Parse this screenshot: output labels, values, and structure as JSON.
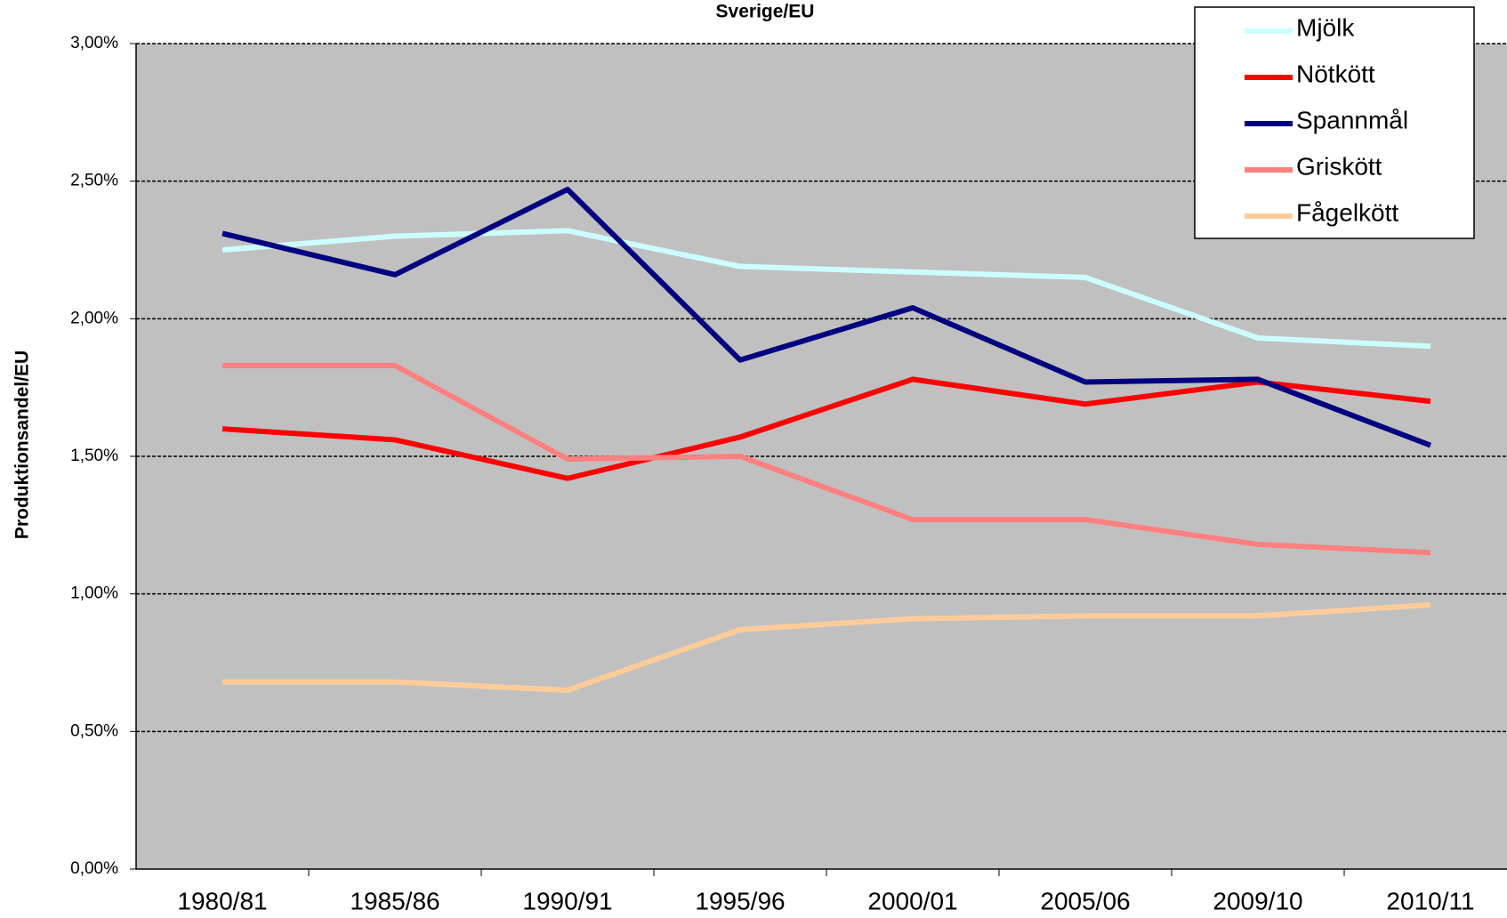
{
  "chart_data": {
    "type": "line",
    "title": "Sverige/EU",
    "y_label": "Produktionsandel/EU",
    "categories": [
      "1980/81",
      "1985/86",
      "1990/91",
      "1995/96",
      "2000/01",
      "2005/06",
      "2009/10",
      "2010/11"
    ],
    "series": [
      {
        "name": "Mjölk",
        "color": "#ccffff",
        "values": [
          2.25,
          2.3,
          2.32,
          2.19,
          2.17,
          2.15,
          1.93,
          1.9
        ]
      },
      {
        "name": "Nötkött",
        "color": "#ff0000",
        "values": [
          1.6,
          1.56,
          1.42,
          1.57,
          1.78,
          1.69,
          1.77,
          1.7
        ]
      },
      {
        "name": "Spannmål",
        "color": "#000080",
        "values": [
          2.31,
          2.16,
          2.47,
          1.85,
          2.04,
          1.77,
          1.78,
          1.54
        ]
      },
      {
        "name": "Griskött",
        "color": "#ff8080",
        "values": [
          1.83,
          1.83,
          1.49,
          1.5,
          1.27,
          1.27,
          1.18,
          1.15
        ]
      },
      {
        "name": "Fågelkött",
        "color": "#ffcc99",
        "values": [
          0.68,
          0.68,
          0.65,
          0.87,
          0.91,
          0.92,
          0.92,
          0.96
        ]
      }
    ],
    "ylim": [
      0,
      3
    ],
    "yticks": [
      {
        "value": 0,
        "label": "0,00%"
      },
      {
        "value": 0.5,
        "label": "0,50%"
      },
      {
        "value": 1,
        "label": "1,00%"
      },
      {
        "value": 1.5,
        "label": "1,50%"
      },
      {
        "value": 2,
        "label": "2,00%"
      },
      {
        "value": 2.5,
        "label": "2,50%"
      },
      {
        "value": 3,
        "label": "3,00%"
      }
    ],
    "grid": true,
    "legend": "upper right"
  }
}
